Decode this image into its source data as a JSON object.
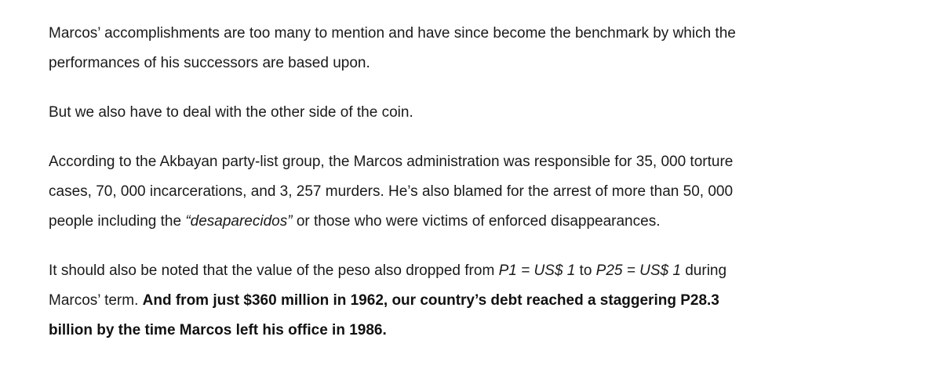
{
  "article": {
    "p1": {
      "line1": "Marcos’ accomplishments are too many to mention and have since become the benchmark by which the",
      "line2": "performances of his successors are based upon."
    },
    "p2": {
      "text": "But we also have to deal with the other side of the coin."
    },
    "p3": {
      "line1": "According to the Akbayan party-list group, the Marcos administration was responsible for 35, 000 torture",
      "line2": "cases, 70, 000 incarcerations, and 3, 257 murders. He’s also blamed for the arrest of more than 50, 000",
      "line3_before": "people including the ",
      "line3_italic": "“desaparecidos”",
      "line3_after": " or those who were victims of enforced disappearances."
    },
    "p4": {
      "line1_before": "It should also be noted that the value of the peso also dropped from ",
      "line1_italic1": "P1 = US$ 1",
      "line1_mid": " to ",
      "line1_italic2": "P25  = US$ 1",
      "line1_after": " during",
      "line2_normal": "Marcos’ term. ",
      "line2_bold": "And from just $360 million in 1962, our country’s debt reached a staggering P28.3",
      "line3_bold": "billion by the time Marcos left his office in 1986."
    }
  }
}
